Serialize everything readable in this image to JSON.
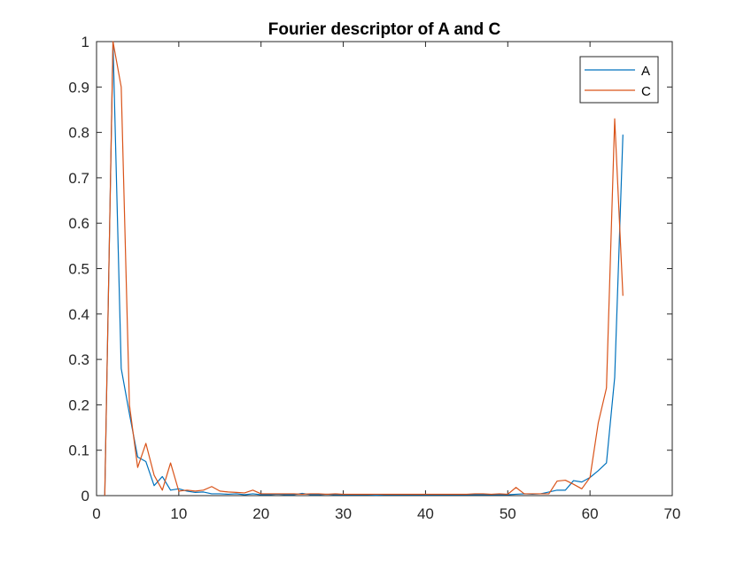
{
  "chart_data": {
    "type": "line",
    "title": "Fourier descriptor of A and C",
    "xlabel": "",
    "ylabel": "",
    "xlim": [
      0,
      70
    ],
    "ylim": [
      0,
      1
    ],
    "xticks": [
      0,
      10,
      20,
      30,
      40,
      50,
      60,
      70
    ],
    "yticks": [
      0,
      0.1,
      0.2,
      0.3,
      0.4,
      0.5,
      0.6,
      0.7,
      0.8,
      0.9,
      1
    ],
    "xtick_labels": [
      "0",
      "10",
      "20",
      "30",
      "40",
      "50",
      "60",
      "70"
    ],
    "ytick_labels": [
      "0",
      "0.1",
      "0.2",
      "0.3",
      "0.4",
      "0.5",
      "0.6",
      "0.7",
      "0.8",
      "0.9",
      "1"
    ],
    "grid": false,
    "legend_position": "top-right",
    "x": [
      1,
      2,
      3,
      4,
      5,
      6,
      7,
      8,
      9,
      10,
      11,
      12,
      13,
      14,
      15,
      16,
      17,
      18,
      19,
      20,
      21,
      22,
      23,
      24,
      25,
      26,
      27,
      28,
      29,
      30,
      31,
      32,
      33,
      34,
      35,
      36,
      37,
      38,
      39,
      40,
      41,
      42,
      43,
      44,
      45,
      46,
      47,
      48,
      49,
      50,
      51,
      52,
      53,
      54,
      55,
      56,
      57,
      58,
      59,
      60,
      61,
      62,
      63,
      64
    ],
    "series": [
      {
        "name": "A",
        "color": "#0072BD",
        "values": [
          0,
          1.0,
          0.28,
          0.18,
          0.085,
          0.075,
          0.022,
          0.042,
          0.012,
          0.015,
          0.01,
          0.007,
          0.008,
          0.004,
          0.004,
          0.003,
          0.004,
          0.002,
          0.004,
          0.002,
          0.002,
          0.003,
          0.002,
          0.002,
          0.005,
          0.002,
          0.002,
          0.003,
          0.002,
          0.002,
          0.002,
          0.002,
          0.002,
          0.001,
          0.002,
          0.002,
          0.002,
          0.002,
          0.002,
          0.002,
          0.002,
          0.002,
          0.002,
          0.002,
          0.002,
          0.002,
          0.002,
          0.002,
          0.002,
          0.002,
          0.003,
          0.004,
          0.003,
          0.004,
          0.008,
          0.012,
          0.012,
          0.033,
          0.03,
          0.04,
          0.055,
          0.072,
          0.26,
          0.795
        ]
      },
      {
        "name": "C",
        "color": "#D95319",
        "values": [
          0,
          1.0,
          0.9,
          0.2,
          0.062,
          0.115,
          0.045,
          0.012,
          0.072,
          0.01,
          0.012,
          0.01,
          0.012,
          0.02,
          0.01,
          0.008,
          0.007,
          0.006,
          0.012,
          0.004,
          0.004,
          0.004,
          0.004,
          0.004,
          0.003,
          0.004,
          0.004,
          0.003,
          0.004,
          0.003,
          0.003,
          0.003,
          0.003,
          0.003,
          0.003,
          0.003,
          0.003,
          0.003,
          0.003,
          0.003,
          0.003,
          0.003,
          0.003,
          0.003,
          0.003,
          0.004,
          0.004,
          0.003,
          0.004,
          0.003,
          0.018,
          0.004,
          0.004,
          0.004,
          0.004,
          0.032,
          0.034,
          0.025,
          0.015,
          0.04,
          0.16,
          0.237,
          0.83,
          0.44
        ]
      }
    ]
  }
}
